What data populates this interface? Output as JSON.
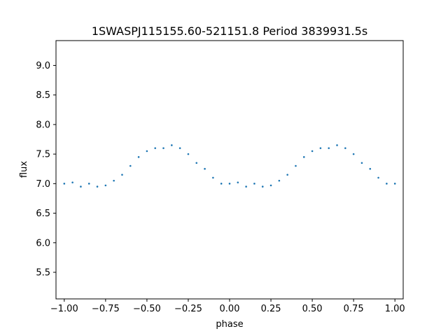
{
  "chart_data": {
    "type": "scatter",
    "title": "1SWASPJ115155.60-521151.8 Period 3839931.5s",
    "xlabel": "phase",
    "ylabel": "flux",
    "xlim": [
      -1.05,
      1.05
    ],
    "ylim": [
      5.05,
      9.42
    ],
    "grid": false,
    "marker_color": "#1f77b4",
    "x_ticks": [
      -1.0,
      -0.75,
      -0.5,
      -0.25,
      0.0,
      0.25,
      0.5,
      0.75,
      1.0
    ],
    "x_tick_labels": [
      "−1.00",
      "−0.75",
      "−0.50",
      "−0.25",
      "0.00",
      "0.25",
      "0.50",
      "0.75",
      "1.00"
    ],
    "y_ticks": [
      5.5,
      6.0,
      6.5,
      7.0,
      7.5,
      8.0,
      8.5,
      9.0
    ],
    "y_tick_labels": [
      "5.5",
      "6.0",
      "6.5",
      "7.0",
      "7.5",
      "8.0",
      "8.5",
      "9.0"
    ],
    "series": [
      {
        "x": [
          -1.0,
          -0.95,
          -0.9,
          -0.85,
          -0.8,
          -0.75,
          -0.7,
          -0.65,
          -0.6,
          -0.55,
          -0.5,
          -0.45,
          -0.4,
          -0.35,
          -0.3,
          -0.25,
          -0.2,
          -0.15,
          -0.1,
          -0.05,
          0.0,
          0.05,
          0.1,
          0.15,
          0.2,
          0.25,
          0.3,
          0.35,
          0.4,
          0.45,
          0.5,
          0.55,
          0.6,
          0.65,
          0.7,
          0.75,
          0.8,
          0.85,
          0.9,
          0.95,
          1.0
        ],
        "y": [
          7.0,
          7.02,
          6.95,
          7.0,
          6.95,
          6.97,
          7.05,
          7.15,
          7.3,
          7.45,
          7.55,
          7.6,
          7.6,
          7.65,
          7.6,
          7.5,
          7.35,
          7.25,
          7.1,
          7.0,
          7.0,
          7.02,
          6.95,
          7.0,
          6.95,
          6.97,
          7.05,
          7.15,
          7.3,
          7.45,
          7.55,
          7.6,
          7.6,
          7.65,
          7.6,
          7.5,
          7.35,
          7.25,
          7.1,
          7.0,
          7.0
        ]
      }
    ]
  }
}
